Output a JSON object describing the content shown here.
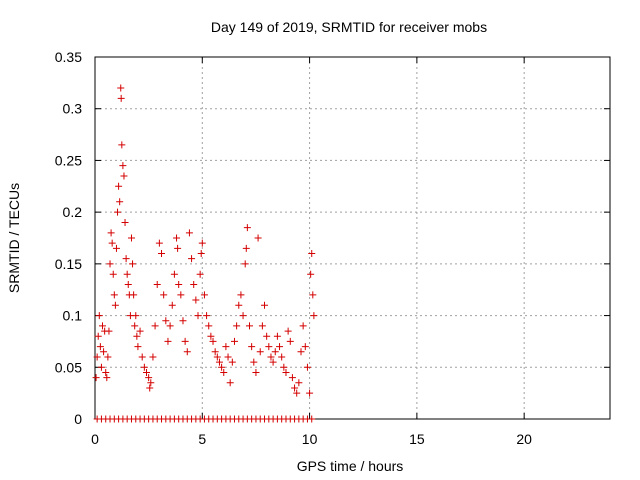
{
  "chart_data": {
    "type": "scatter",
    "title": "Day 149 of 2019, SRMTID for receiver mobs",
    "xlabel": "GPS time / hours",
    "ylabel": "SRMTID / TECUs",
    "xlim": [
      0,
      24
    ],
    "ylim": [
      0,
      0.35
    ],
    "xticks": [
      0,
      5,
      10,
      15,
      20
    ],
    "xtick_labels": [
      "0",
      "5",
      "10",
      "15",
      "20"
    ],
    "yticks": [
      0,
      0.05,
      0.1,
      0.15,
      0.2,
      0.25,
      0.3,
      0.35
    ],
    "ytick_labels": [
      "0",
      "0.05",
      "0.1",
      "0.15",
      "0.2",
      "0.25",
      "0.3",
      "0.35"
    ],
    "grid": true,
    "marker": "+",
    "color": "#d40000",
    "series": [
      {
        "points": [
          [
            0.05,
            0.04
          ],
          [
            0.1,
            0.06
          ],
          [
            0.15,
            0.08
          ],
          [
            0.2,
            0.1
          ],
          [
            0.25,
            0.07
          ],
          [
            0.3,
            0.05
          ],
          [
            0.35,
            0.09
          ],
          [
            0.4,
            0.065
          ],
          [
            0.45,
            0.085
          ],
          [
            0.5,
            0.045
          ],
          [
            0.55,
            0.04
          ],
          [
            0.6,
            0.06
          ],
          [
            0.65,
            0.085
          ],
          [
            0.7,
            0.15
          ],
          [
            0.75,
            0.18
          ],
          [
            0.8,
            0.17
          ],
          [
            0.85,
            0.14
          ],
          [
            0.9,
            0.12
          ],
          [
            0.95,
            0.11
          ],
          [
            1.0,
            0.165
          ],
          [
            1.05,
            0.2
          ],
          [
            1.1,
            0.225
          ],
          [
            1.15,
            0.21
          ],
          [
            1.2,
            0.32
          ],
          [
            1.22,
            0.31
          ],
          [
            1.25,
            0.265
          ],
          [
            1.3,
            0.245
          ],
          [
            1.35,
            0.235
          ],
          [
            1.4,
            0.19
          ],
          [
            1.45,
            0.155
          ],
          [
            1.5,
            0.14
          ],
          [
            1.55,
            0.13
          ],
          [
            1.6,
            0.12
          ],
          [
            1.65,
            0.1
          ],
          [
            1.7,
            0.175
          ],
          [
            1.75,
            0.15
          ],
          [
            1.8,
            0.12
          ],
          [
            1.85,
            0.09
          ],
          [
            1.9,
            0.1
          ],
          [
            1.95,
            0.08
          ],
          [
            2.0,
            0.07
          ],
          [
            2.1,
            0.085
          ],
          [
            2.2,
            0.06
          ],
          [
            2.3,
            0.05
          ],
          [
            2.4,
            0.045
          ],
          [
            2.5,
            0.04
          ],
          [
            2.55,
            0.03
          ],
          [
            2.6,
            0.035
          ],
          [
            2.7,
            0.06
          ],
          [
            2.8,
            0.09
          ],
          [
            2.9,
            0.13
          ],
          [
            3.0,
            0.17
          ],
          [
            3.1,
            0.16
          ],
          [
            3.2,
            0.12
          ],
          [
            3.3,
            0.095
          ],
          [
            3.4,
            0.075
          ],
          [
            3.5,
            0.09
          ],
          [
            3.6,
            0.11
          ],
          [
            3.7,
            0.14
          ],
          [
            3.8,
            0.175
          ],
          [
            3.85,
            0.165
          ],
          [
            3.9,
            0.13
          ],
          [
            4.0,
            0.12
          ],
          [
            4.1,
            0.095
          ],
          [
            4.2,
            0.075
          ],
          [
            4.3,
            0.065
          ],
          [
            4.4,
            0.18
          ],
          [
            4.5,
            0.155
          ],
          [
            4.6,
            0.13
          ],
          [
            4.7,
            0.115
          ],
          [
            4.8,
            0.1
          ],
          [
            4.9,
            0.14
          ],
          [
            4.95,
            0.16
          ],
          [
            5.0,
            0.17
          ],
          [
            5.1,
            0.12
          ],
          [
            5.2,
            0.1
          ],
          [
            5.3,
            0.09
          ],
          [
            5.4,
            0.08
          ],
          [
            5.5,
            0.075
          ],
          [
            5.6,
            0.065
          ],
          [
            5.7,
            0.06
          ],
          [
            5.8,
            0.055
          ],
          [
            5.9,
            0.05
          ],
          [
            6.0,
            0.045
          ],
          [
            6.1,
            0.07
          ],
          [
            6.2,
            0.06
          ],
          [
            6.3,
            0.035
          ],
          [
            6.4,
            0.055
          ],
          [
            6.5,
            0.075
          ],
          [
            6.6,
            0.09
          ],
          [
            6.7,
            0.11
          ],
          [
            6.8,
            0.12
          ],
          [
            6.9,
            0.1
          ],
          [
            7.0,
            0.15
          ],
          [
            7.05,
            0.165
          ],
          [
            7.1,
            0.185
          ],
          [
            7.2,
            0.09
          ],
          [
            7.3,
            0.07
          ],
          [
            7.4,
            0.055
          ],
          [
            7.5,
            0.045
          ],
          [
            7.6,
            0.175
          ],
          [
            7.7,
            0.065
          ],
          [
            7.8,
            0.09
          ],
          [
            7.9,
            0.11
          ],
          [
            8.0,
            0.08
          ],
          [
            8.1,
            0.07
          ],
          [
            8.2,
            0.06
          ],
          [
            8.3,
            0.055
          ],
          [
            8.4,
            0.065
          ],
          [
            8.5,
            0.08
          ],
          [
            8.6,
            0.07
          ],
          [
            8.7,
            0.06
          ],
          [
            8.8,
            0.05
          ],
          [
            8.9,
            0.045
          ],
          [
            9.0,
            0.085
          ],
          [
            9.1,
            0.075
          ],
          [
            9.2,
            0.04
          ],
          [
            9.3,
            0.03
          ],
          [
            9.4,
            0.025
          ],
          [
            9.5,
            0.035
          ],
          [
            9.6,
            0.065
          ],
          [
            9.7,
            0.09
          ],
          [
            9.8,
            0.07
          ],
          [
            9.9,
            0.05
          ],
          [
            10.0,
            0.025
          ],
          [
            10.05,
            0.14
          ],
          [
            10.1,
            0.16
          ],
          [
            10.15,
            0.12
          ],
          [
            10.2,
            0.1
          ]
        ]
      },
      {
        "points": [
          [
            0.1,
            0
          ],
          [
            0.3,
            0
          ],
          [
            0.5,
            0
          ],
          [
            0.7,
            0
          ],
          [
            0.9,
            0
          ],
          [
            1.1,
            0
          ],
          [
            1.3,
            0
          ],
          [
            1.5,
            0
          ],
          [
            1.7,
            0
          ],
          [
            1.9,
            0
          ],
          [
            2.1,
            0
          ],
          [
            2.3,
            0
          ],
          [
            2.5,
            0
          ],
          [
            2.7,
            0
          ],
          [
            2.9,
            0
          ],
          [
            3.1,
            0
          ],
          [
            3.3,
            0
          ],
          [
            3.5,
            0
          ],
          [
            3.7,
            0
          ],
          [
            3.9,
            0
          ],
          [
            4.1,
            0
          ],
          [
            4.3,
            0
          ],
          [
            4.5,
            0
          ],
          [
            4.7,
            0
          ],
          [
            4.9,
            0
          ],
          [
            5.1,
            0
          ],
          [
            5.3,
            0
          ],
          [
            5.5,
            0
          ],
          [
            5.7,
            0
          ],
          [
            5.9,
            0
          ],
          [
            6.1,
            0
          ],
          [
            6.3,
            0
          ],
          [
            6.5,
            0
          ],
          [
            6.7,
            0
          ],
          [
            6.9,
            0
          ],
          [
            7.1,
            0
          ],
          [
            7.3,
            0
          ],
          [
            7.5,
            0
          ],
          [
            7.7,
            0
          ],
          [
            7.9,
            0
          ],
          [
            8.1,
            0
          ],
          [
            8.3,
            0
          ],
          [
            8.5,
            0
          ],
          [
            8.7,
            0
          ],
          [
            8.9,
            0
          ],
          [
            9.1,
            0
          ],
          [
            9.3,
            0
          ],
          [
            9.5,
            0
          ],
          [
            9.7,
            0
          ],
          [
            9.9,
            0
          ],
          [
            10.1,
            0
          ]
        ]
      }
    ]
  }
}
